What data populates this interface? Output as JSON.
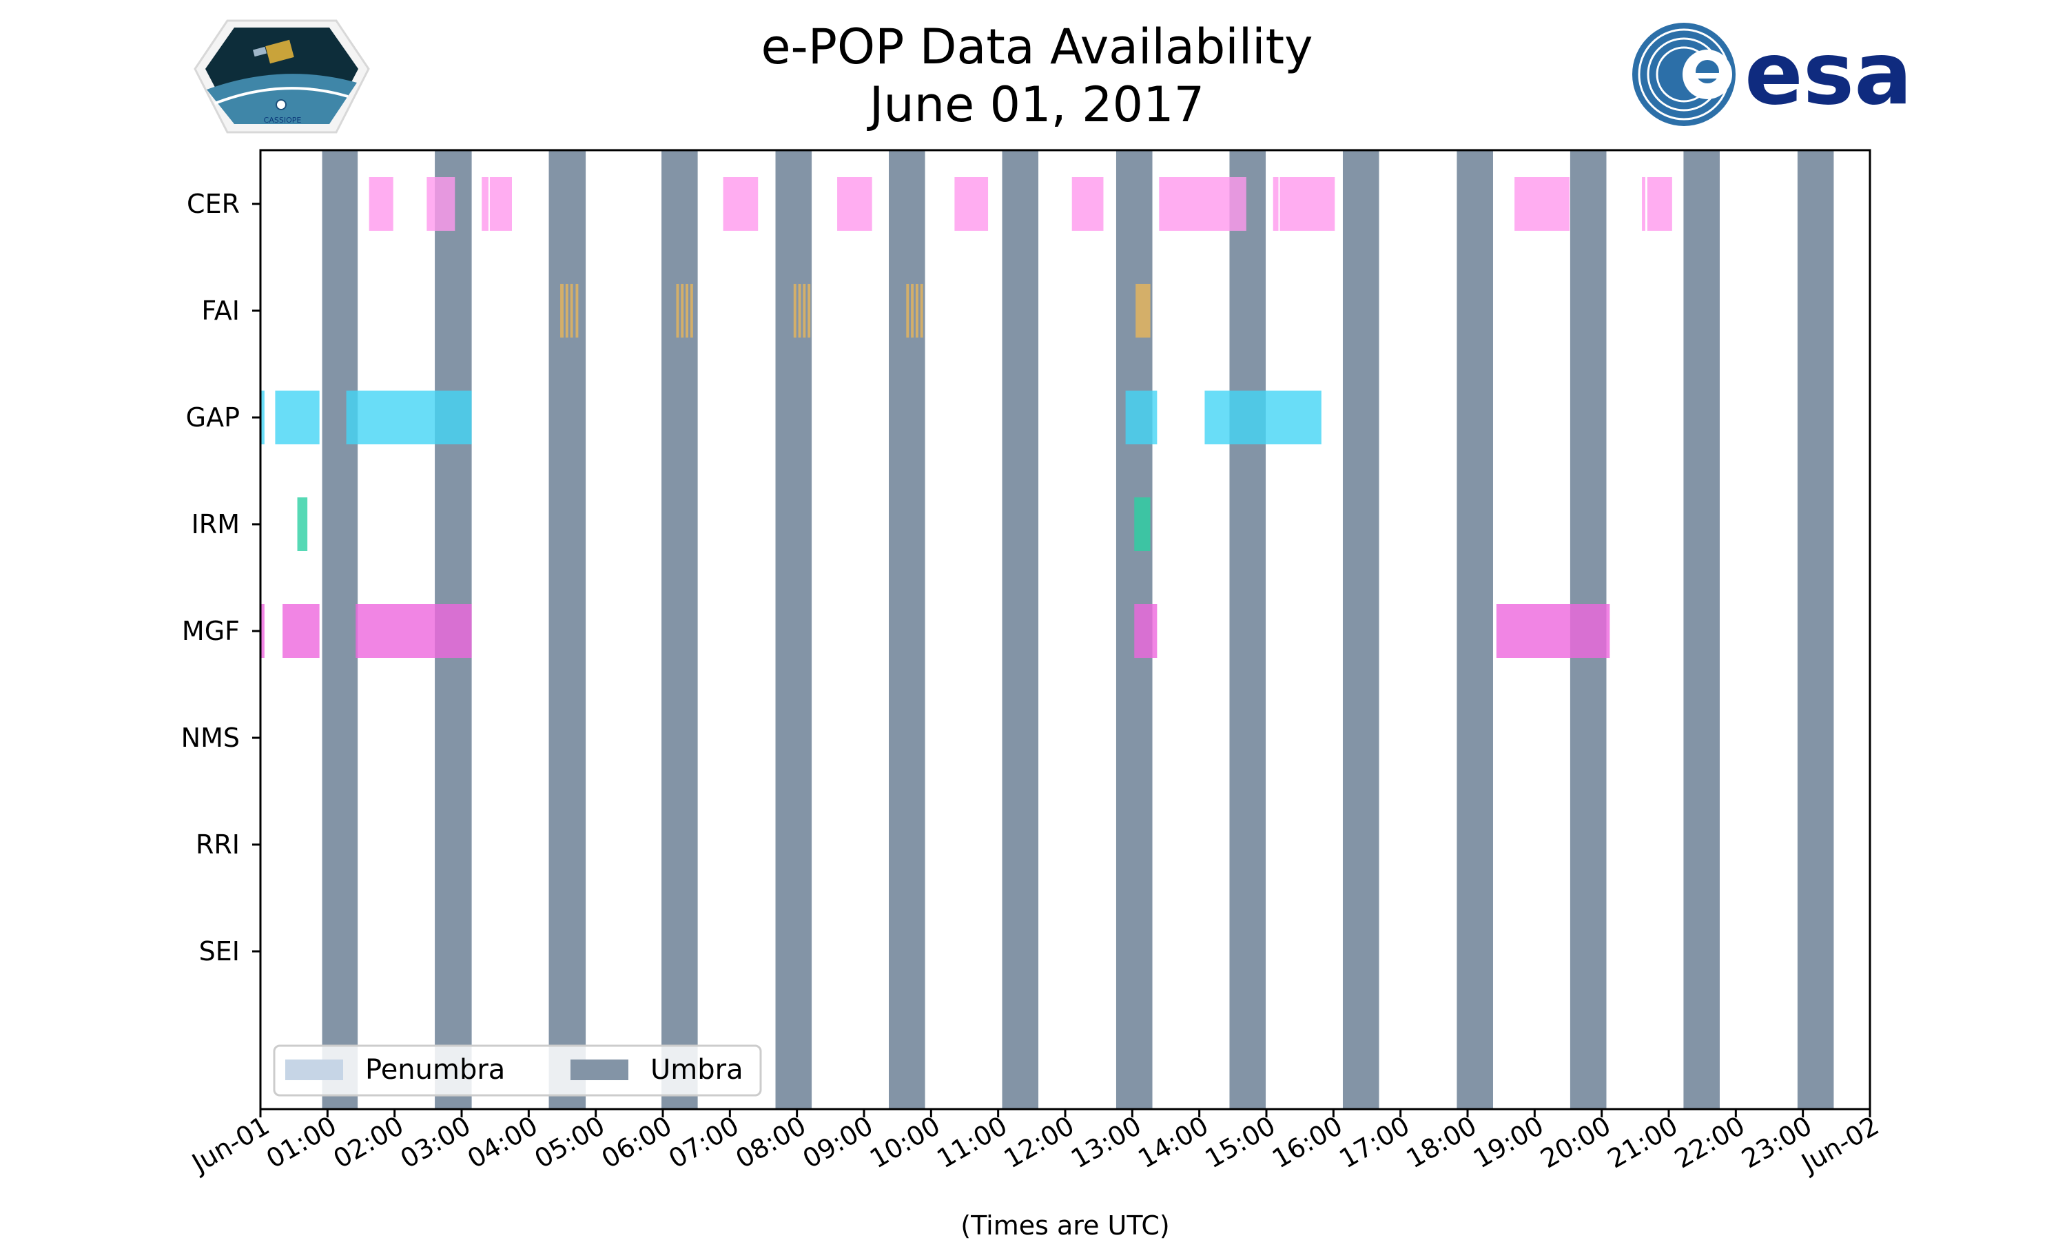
{
  "chart_data": {
    "type": "timeline",
    "title": "e-POP Data Availability",
    "subtitle": "June 01, 2017",
    "xlabel": "(Times are UTC)",
    "x_range_hours": [
      0,
      24
    ],
    "x_tick_labels": [
      "Jun-01",
      "01:00",
      "02:00",
      "03:00",
      "04:00",
      "05:00",
      "06:00",
      "07:00",
      "08:00",
      "09:00",
      "10:00",
      "11:00",
      "12:00",
      "13:00",
      "14:00",
      "15:00",
      "16:00",
      "17:00",
      "18:00",
      "19:00",
      "20:00",
      "21:00",
      "22:00",
      "23:00",
      "Jun-02"
    ],
    "instruments": [
      "CER",
      "FAI",
      "GAP",
      "IRM",
      "MGF",
      "NMS",
      "RRI",
      "SEI"
    ],
    "umbra_intervals_hours": [
      [
        0.92,
        1.45
      ],
      [
        2.6,
        3.15
      ],
      [
        4.3,
        4.85
      ],
      [
        5.98,
        6.52
      ],
      [
        7.68,
        8.22
      ],
      [
        9.37,
        9.91
      ],
      [
        11.06,
        11.6
      ],
      [
        12.76,
        13.3
      ],
      [
        14.45,
        14.99
      ],
      [
        16.14,
        16.68
      ],
      [
        17.84,
        18.38
      ],
      [
        19.53,
        20.07
      ],
      [
        21.22,
        21.76
      ],
      [
        22.92,
        23.46
      ]
    ],
    "series": [
      {
        "name": "CER",
        "color": "#ff99ee",
        "intervals_hours": [
          [
            1.62,
            1.98
          ],
          [
            2.48,
            2.9
          ],
          [
            3.3,
            3.4
          ],
          [
            3.42,
            3.75
          ],
          [
            6.9,
            7.42
          ],
          [
            8.6,
            9.12
          ],
          [
            10.35,
            10.85
          ],
          [
            12.1,
            12.57
          ],
          [
            13.4,
            14.7
          ],
          [
            15.1,
            15.18
          ],
          [
            15.2,
            16.02
          ],
          [
            18.7,
            19.52
          ],
          [
            20.6,
            20.65
          ],
          [
            20.68,
            21.05
          ]
        ]
      },
      {
        "name": "FAI",
        "color": "#e8b55a",
        "intervals_hours": [
          [
            4.47,
            4.52
          ],
          [
            4.55,
            4.59
          ],
          [
            4.62,
            4.66
          ],
          [
            4.7,
            4.74
          ],
          [
            6.2,
            6.24
          ],
          [
            6.27,
            6.31
          ],
          [
            6.34,
            6.38
          ],
          [
            6.41,
            6.45
          ],
          [
            7.95,
            7.99
          ],
          [
            8.02,
            8.06
          ],
          [
            8.09,
            8.13
          ],
          [
            8.16,
            8.2
          ],
          [
            9.63,
            9.67
          ],
          [
            9.7,
            9.74
          ],
          [
            9.77,
            9.81
          ],
          [
            9.84,
            9.88
          ],
          [
            13.05,
            13.27
          ]
        ]
      },
      {
        "name": "GAP",
        "color": "#44d5f5",
        "intervals_hours": [
          [
            0.0,
            0.06
          ],
          [
            0.22,
            0.88
          ],
          [
            1.28,
            3.15
          ],
          [
            12.9,
            13.37
          ],
          [
            14.08,
            15.82
          ]
        ]
      },
      {
        "name": "IRM",
        "color": "#2ccfa2",
        "intervals_hours": [
          [
            0.55,
            0.7
          ],
          [
            13.03,
            13.27
          ]
        ]
      },
      {
        "name": "MGF",
        "color": "#ee66dd",
        "intervals_hours": [
          [
            0.0,
            0.06
          ],
          [
            0.33,
            0.88
          ],
          [
            1.42,
            3.15
          ],
          [
            13.03,
            13.37
          ],
          [
            18.43,
            20.12
          ]
        ]
      },
      {
        "name": "NMS",
        "color": "#888888",
        "intervals_hours": []
      },
      {
        "name": "RRI",
        "color": "#888888",
        "intervals_hours": []
      },
      {
        "name": "SEI",
        "color": "#888888",
        "intervals_hours": []
      }
    ],
    "legend": {
      "placement": "bottom-left",
      "entries": [
        {
          "label": "Penumbra",
          "color": "#c6d5e6"
        },
        {
          "label": "Umbra",
          "color": "#8394a6"
        }
      ]
    },
    "colors": {
      "umbra": "#8394a6",
      "penumbra": "#c6d5e6"
    }
  },
  "logos": {
    "left_caption": "CASSIOPE",
    "right_text": "esa"
  }
}
